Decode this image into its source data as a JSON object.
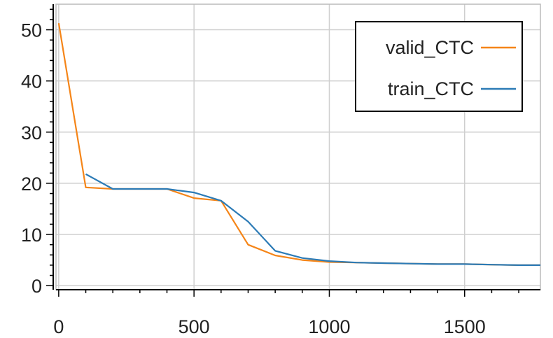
{
  "chart_data": {
    "type": "line",
    "title": "",
    "xlabel": "",
    "ylabel": "",
    "xlim": [
      -10,
      1780
    ],
    "ylim": [
      -0.8,
      55
    ],
    "x_ticks": [
      0,
      500,
      1000,
      1500
    ],
    "y_ticks": [
      0,
      10,
      20,
      30,
      40,
      50
    ],
    "x_tick_labels": [
      "0",
      "500",
      "1000",
      "1500"
    ],
    "y_tick_labels": [
      "0",
      "10",
      "20",
      "30",
      "40",
      "50"
    ],
    "grid": true,
    "legend_position": "top-right",
    "series": [
      {
        "name": "valid_CTC",
        "color": "#f58518",
        "x": [
          0,
          100,
          200,
          300,
          400,
          500,
          600,
          700,
          800,
          900,
          1000,
          1100,
          1200,
          1300,
          1400,
          1500,
          1600,
          1700,
          1780
        ],
        "y": [
          51.3,
          19.2,
          18.9,
          18.9,
          18.9,
          17.1,
          16.6,
          8.0,
          5.9,
          5.0,
          4.6,
          4.5,
          4.4,
          4.3,
          4.2,
          4.2,
          4.1,
          4.0,
          4.0
        ]
      },
      {
        "name": "train_CTC",
        "color": "#2c7bb6",
        "x": [
          100,
          200,
          300,
          400,
          500,
          600,
          700,
          800,
          900,
          1000,
          1100,
          1200,
          1300,
          1400,
          1500,
          1600,
          1700,
          1780
        ],
        "y": [
          21.8,
          18.9,
          18.9,
          18.9,
          18.2,
          16.6,
          12.5,
          6.8,
          5.4,
          4.8,
          4.5,
          4.4,
          4.3,
          4.2,
          4.2,
          4.1,
          4.0,
          4.0
        ]
      }
    ]
  }
}
